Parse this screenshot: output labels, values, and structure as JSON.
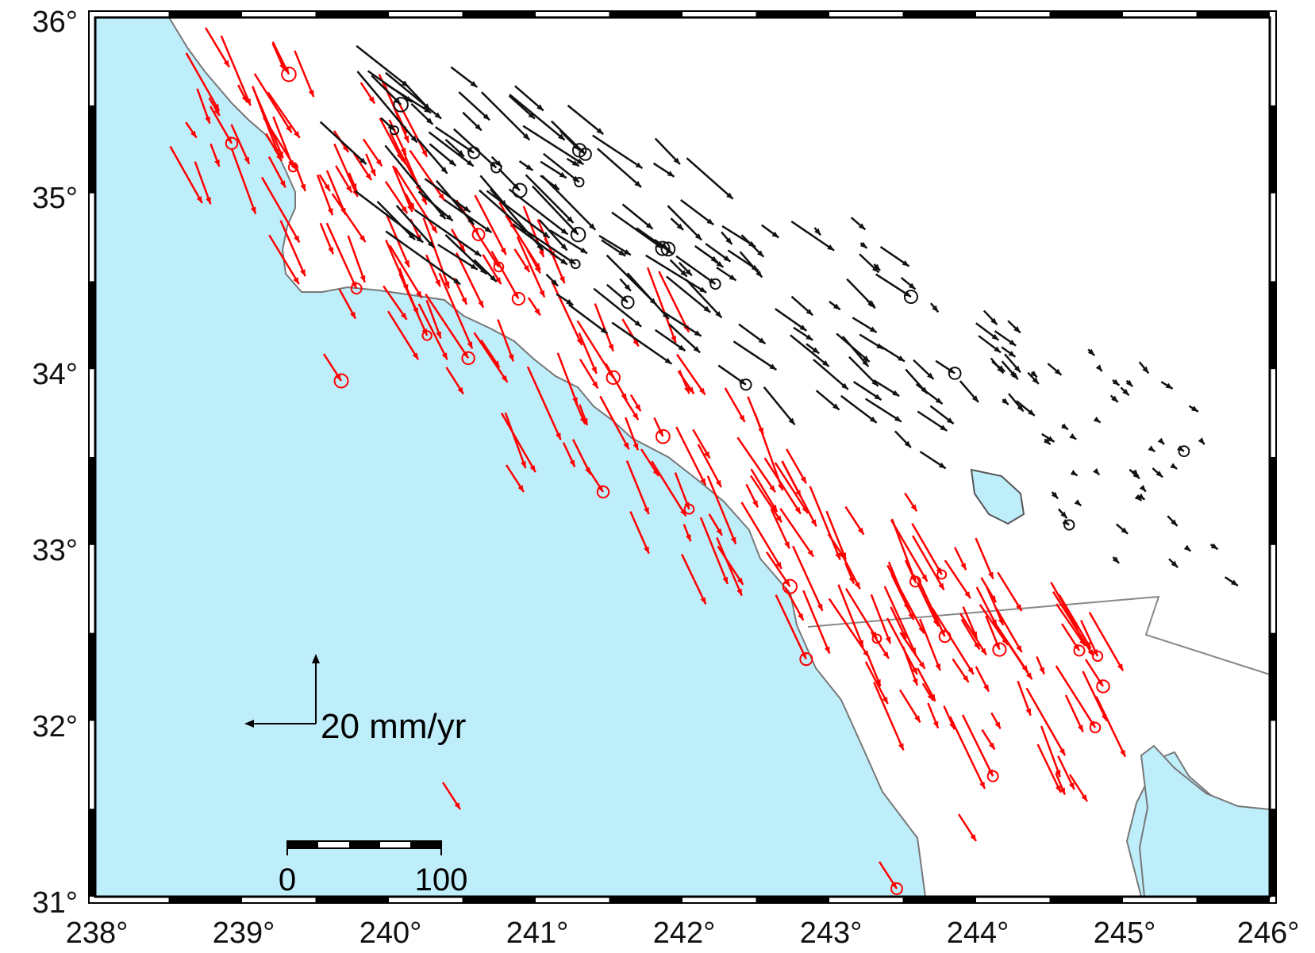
{
  "map": {
    "lon_labels": [
      "238°",
      "239°",
      "240°",
      "241°",
      "242°",
      "243°",
      "244°",
      "245°",
      "246°"
    ],
    "lat_labels": [
      "36°",
      "35°",
      "34°",
      "33°",
      "32°",
      "31°"
    ],
    "extent": {
      "lon": [
        238,
        246
      ],
      "lat": [
        31,
        36
      ]
    },
    "colors": {
      "ocean": "#bfeefb",
      "land": "#ffffff",
      "coastline": "#777777",
      "plate_vectors": "#ff0000",
      "continental_vectors": "#111111",
      "frame": "#000000"
    },
    "velocity_legend": {
      "label": "20 mm/yr"
    },
    "scale_bar": {
      "start_label": "0",
      "end_label": "100"
    },
    "vector_series": [
      {
        "color_key": "plate_vectors",
        "description_icon": "red-velocity-arrow"
      },
      {
        "color_key": "continental_vectors",
        "description_icon": "black-velocity-arrow"
      }
    ]
  }
}
